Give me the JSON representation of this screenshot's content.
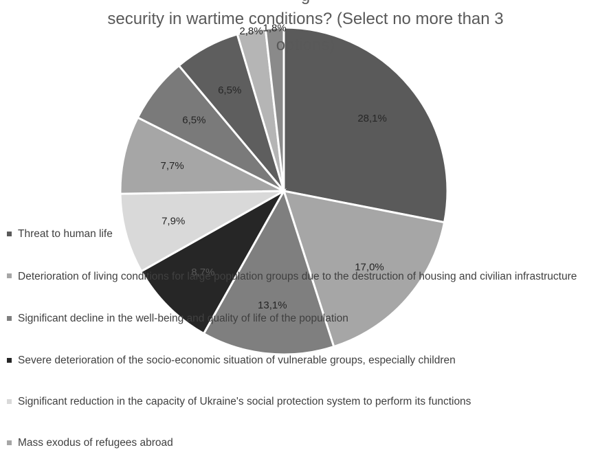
{
  "chart_data": {
    "type": "pie",
    "title_lines": [
      "g",
      "security in wartime conditions? (Select no more than 3",
      "options)"
    ],
    "slices": [
      {
        "label": "Threat to human life",
        "value": 28.1,
        "display": "28,1%",
        "color": "#5a5a5a",
        "label_color": "#262626"
      },
      {
        "label": "Deterioration of living conditions for large population groups due to the destruction of housing and civilian infrastructure",
        "value": 17.0,
        "display": "17,0%",
        "color": "#a6a6a6",
        "label_color": "#262626"
      },
      {
        "label": "Significant decline in the well-being and quality of life of the population",
        "value": 13.1,
        "display": "13,1%",
        "color": "#7f7f7f",
        "label_color": "#262626"
      },
      {
        "label": "Severe deterioration of the socio-economic situation of vulnerable groups, especially children",
        "value": 8.7,
        "display": "8,7%",
        "color": "#262626",
        "label_color": "#595959"
      },
      {
        "label": "Significant reduction in the capacity of Ukraine's social protection system to perform its functions",
        "value": 7.9,
        "display": "7,9%",
        "color": "#d9d9d9",
        "label_color": "#262626"
      },
      {
        "label": "Mass exodus of refugees abroad",
        "value": 7.7,
        "display": "7,7%",
        "color": "#a6a6a6",
        "label_color": "#262626"
      },
      {
        "label": "",
        "value": 6.5,
        "display": "6,5%",
        "color": "#7a7a7a",
        "label_color": "#262626"
      },
      {
        "label": "",
        "value": 6.5,
        "display": "6,5%",
        "color": "#5e5e5e",
        "label_color": "#262626"
      },
      {
        "label": "",
        "value": 2.8,
        "display": "2,8%",
        "color": "#b5b5b5",
        "label_color": "#262626"
      },
      {
        "label": "",
        "value": 1.8,
        "display": "1,8%",
        "color": "#8a8a8a",
        "label_color": "#262626"
      }
    ],
    "legend_position": "left-bottom"
  }
}
